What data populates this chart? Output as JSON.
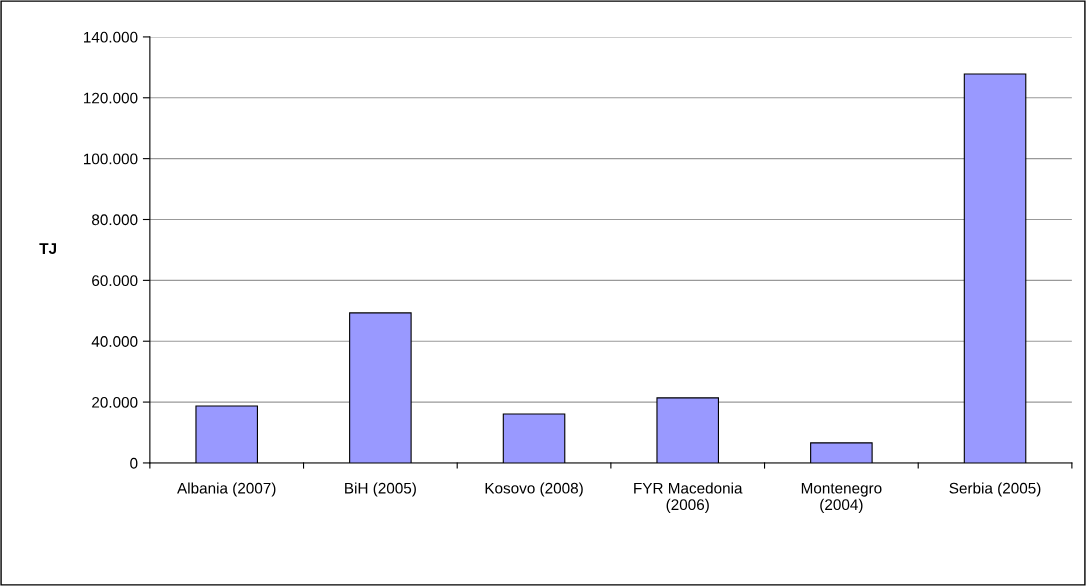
{
  "chart_data": {
    "type": "bar",
    "ylabel": "TJ",
    "categories": [
      "Albania (2007)",
      "BiH (2005)",
      "Kosovo (2008)",
      "FYR Macedonia\n(2006)",
      "Montenegro\n(2004)",
      "Serbia (2005)"
    ],
    "values": [
      18700,
      49300,
      16100,
      21400,
      6600,
      127800
    ],
    "color": "#9999ff",
    "ylim": [
      0,
      140000
    ],
    "yticks": [
      0,
      {
        "value": 20000,
        "label": "20.000"
      },
      {
        "value": 40000,
        "label": "40.000"
      },
      {
        "value": 60000,
        "label": "60.000"
      },
      {
        "value": 80000,
        "label": "80.000"
      },
      {
        "value": 100000,
        "label": "100.000"
      },
      {
        "value": 120000,
        "label": "120.000"
      },
      {
        "value": 140000,
        "label": "140.000"
      }
    ],
    "grid": "y",
    "legend": false
  }
}
